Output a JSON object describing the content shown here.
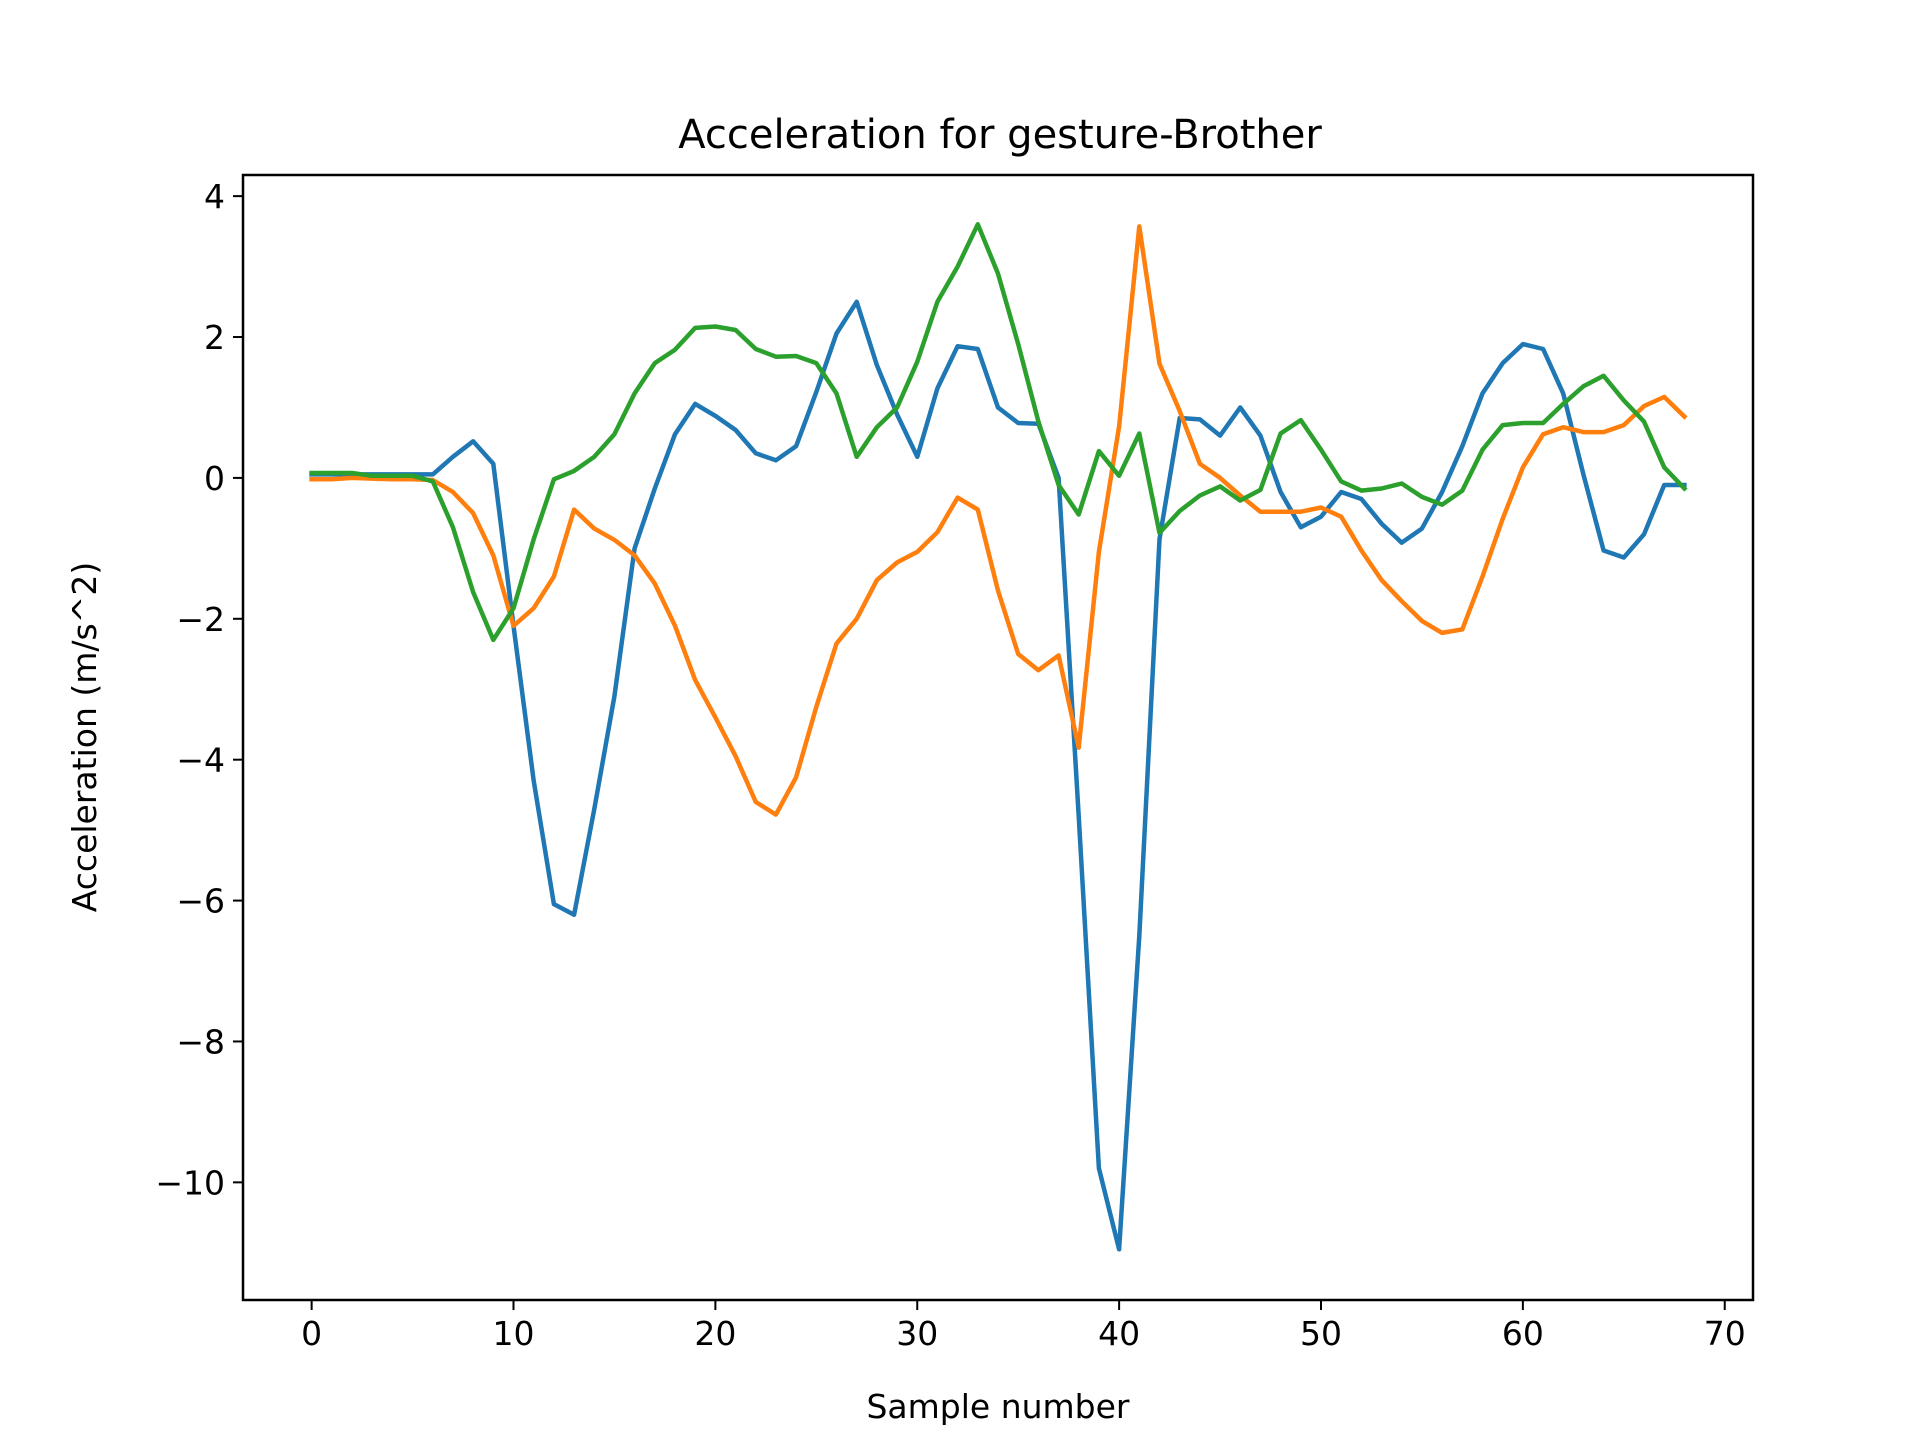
{
  "chart_data": {
    "type": "line",
    "title": "Acceleration for gesture-Brother",
    "xlabel": "Sample number",
    "ylabel": "Acceleration (m/s^2)",
    "xlim": [
      -3.4,
      71.4
    ],
    "ylim": [
      -11.67,
      4.3
    ],
    "xticks": [
      0,
      10,
      20,
      30,
      40,
      50,
      60,
      70
    ],
    "yticks": [
      -10,
      -8,
      -6,
      -4,
      -2,
      0,
      2,
      4
    ],
    "grid": false,
    "legend": "none",
    "series": [
      {
        "color": "#1f77b4",
        "values": [
          0.05,
          0.05,
          0.05,
          0.05,
          0.05,
          0.05,
          0.05,
          0.3,
          0.52,
          0.2,
          -2.1,
          -4.3,
          -6.05,
          -6.2,
          -4.7,
          -3.1,
          -1.0,
          -0.15,
          0.62,
          1.05,
          0.88,
          0.68,
          0.35,
          0.25,
          0.45,
          1.22,
          2.05,
          2.5,
          1.6,
          0.9,
          0.3,
          1.27,
          1.87,
          1.83,
          1.0,
          0.78,
          0.77,
          0.0,
          -4.8,
          -9.8,
          -10.95,
          -6.5,
          -0.87,
          0.85,
          0.83,
          0.6,
          1.0,
          0.6,
          -0.2,
          -0.7,
          -0.55,
          -0.2,
          -0.3,
          -0.65,
          -0.92,
          -0.72,
          -0.2,
          0.45,
          1.2,
          1.63,
          1.9,
          1.83,
          1.2,
          0.05,
          -1.03,
          -1.13,
          -0.8,
          -0.1,
          -0.1
        ]
      },
      {
        "color": "#ff7f0e",
        "values": [
          -0.02,
          -0.02,
          0.0,
          -0.01,
          -0.02,
          -0.02,
          -0.03,
          -0.2,
          -0.5,
          -1.1,
          -2.1,
          -1.85,
          -1.4,
          -0.45,
          -0.72,
          -0.88,
          -1.1,
          -1.5,
          -2.1,
          -2.87,
          -3.4,
          -3.95,
          -4.6,
          -4.78,
          -4.25,
          -3.25,
          -2.35,
          -2.0,
          -1.45,
          -1.2,
          -1.05,
          -0.77,
          -0.28,
          -0.45,
          -1.6,
          -2.5,
          -2.73,
          -2.52,
          -3.83,
          -1.05,
          0.73,
          3.57,
          1.62,
          0.95,
          0.2,
          0.0,
          -0.25,
          -0.48,
          -0.48,
          -0.48,
          -0.42,
          -0.55,
          -1.03,
          -1.45,
          -1.75,
          -2.03,
          -2.2,
          -2.15,
          -1.4,
          -0.58,
          0.15,
          0.62,
          0.72,
          0.65,
          0.65,
          0.75,
          1.02,
          1.15,
          0.87
        ]
      },
      {
        "color": "#2ca02c",
        "values": [
          0.07,
          0.07,
          0.07,
          0.03,
          0.03,
          0.03,
          -0.05,
          -0.7,
          -1.62,
          -2.3,
          -1.85,
          -0.87,
          -0.02,
          0.1,
          0.3,
          0.62,
          1.2,
          1.63,
          1.82,
          2.13,
          2.15,
          2.1,
          1.83,
          1.72,
          1.73,
          1.63,
          1.2,
          0.3,
          0.72,
          1.0,
          1.65,
          2.5,
          3.0,
          3.6,
          2.9,
          1.9,
          0.8,
          -0.1,
          -0.52,
          0.38,
          0.03,
          0.63,
          -0.78,
          -0.47,
          -0.25,
          -0.12,
          -0.32,
          -0.17,
          0.63,
          0.82,
          0.4,
          -0.05,
          -0.18,
          -0.15,
          -0.08,
          -0.27,
          -0.38,
          -0.18,
          0.4,
          0.75,
          0.78,
          0.78,
          1.05,
          1.3,
          1.45,
          1.1,
          0.8,
          0.15,
          -0.15
        ]
      }
    ]
  }
}
